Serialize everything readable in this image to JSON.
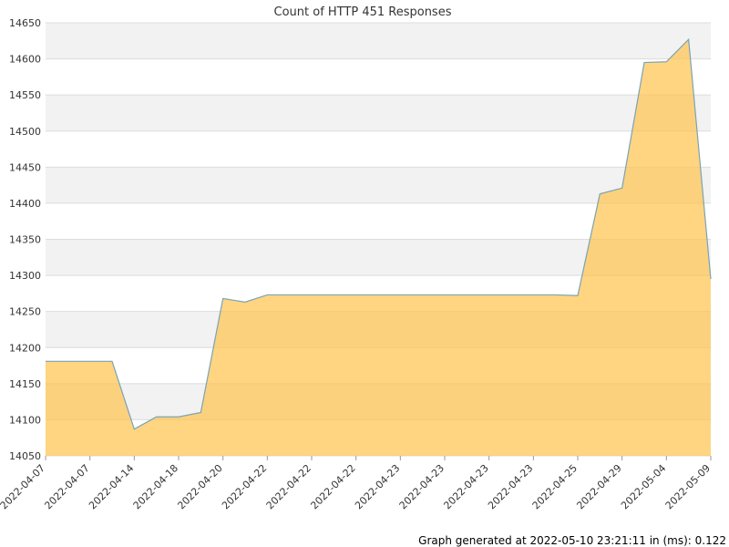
{
  "chart_data": {
    "type": "area",
    "title": "Count of HTTP 451 Responses",
    "xlabel": "",
    "ylabel": "",
    "ylim": [
      14050,
      14650
    ],
    "yticks": [
      14050,
      14100,
      14150,
      14200,
      14250,
      14300,
      14350,
      14400,
      14450,
      14500,
      14550,
      14600,
      14650
    ],
    "xtick_labels": [
      "2022-04-07",
      "2022-04-07",
      "2022-04-14",
      "2022-04-18",
      "2022-04-20",
      "2022-04-22",
      "2022-04-22",
      "2022-04-22",
      "2022-04-23",
      "2022-04-23",
      "2022-04-23",
      "2022-04-23",
      "2022-04-25",
      "2022-04-29",
      "2022-05-04",
      "2022-05-09"
    ],
    "grid": true,
    "legend": "none",
    "colors": {
      "fill": "#ffc34d",
      "line": "#7aa3b3",
      "band": "#f2f2f2"
    },
    "series": [
      {
        "values": [
          14181,
          14181,
          14181,
          14181,
          14087,
          14104,
          14104,
          14110,
          14268,
          14263,
          14273,
          14273,
          14273,
          14273,
          14273,
          14273,
          14273,
          14273,
          14273,
          14273,
          14273,
          14273,
          14273,
          14273,
          14272,
          14413,
          14421,
          14595,
          14596,
          14627,
          14295
        ]
      }
    ]
  },
  "footer": {
    "text": "Graph generated at 2022-05-10 23:21:11 in (ms): 0.122"
  }
}
